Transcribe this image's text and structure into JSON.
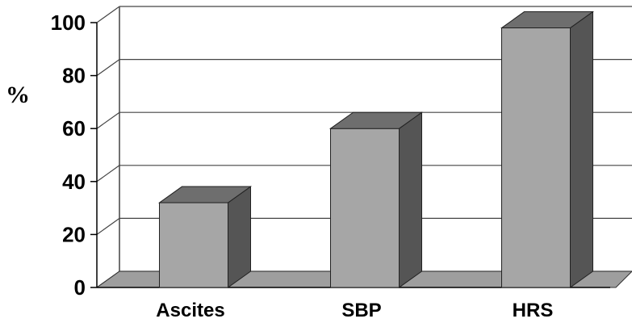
{
  "chart_data": {
    "type": "bar",
    "categories": [
      "Ascites",
      "SBP",
      "HRS"
    ],
    "values": [
      32,
      60,
      98
    ],
    "title": "",
    "xlabel": "",
    "ylabel": "%",
    "ylim": [
      0,
      100
    ],
    "yticks": [
      0,
      20,
      40,
      60,
      80,
      100
    ],
    "grid": true,
    "style": "3d"
  },
  "colors": {
    "bar_front": "#a6a6a6",
    "bar_top": "#6e6e6e",
    "bar_side": "#555555",
    "floor": "#9e9e9e",
    "grid": "#444444"
  }
}
